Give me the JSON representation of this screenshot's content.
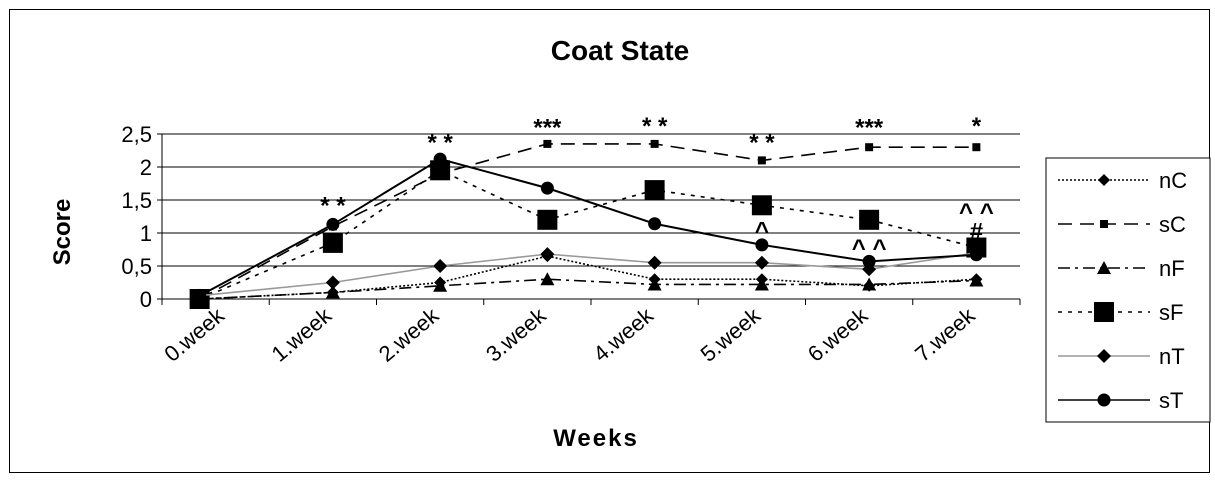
{
  "chart_data": {
    "type": "line",
    "title": "Coat State",
    "xlabel": "Weeks",
    "ylabel": "Score",
    "categories": [
      "0.week",
      "1.week",
      "2.week",
      "3.week",
      "4.week",
      "5.week",
      "6.week",
      "7.week"
    ],
    "y_ticks": [
      "0",
      "0,5",
      "1",
      "1,5",
      "2",
      "2,5"
    ],
    "ylim": [
      0,
      2.5
    ],
    "grid": "horizontal",
    "legend_position": "right",
    "series": [
      {
        "name": "nC",
        "values": [
          0.0,
          0.1,
          0.25,
          0.65,
          0.3,
          0.3,
          0.2,
          0.3
        ],
        "color": "#000000",
        "dash": "dotted-double",
        "marker": "diamond-small"
      },
      {
        "name": "sC",
        "values": [
          0.0,
          1.1,
          1.9,
          2.35,
          2.35,
          2.1,
          2.3,
          2.3
        ],
        "color": "#000000",
        "dash": "long-dash",
        "marker": "square-small"
      },
      {
        "name": "nF",
        "values": [
          0.0,
          0.1,
          0.2,
          0.3,
          0.22,
          0.22,
          0.22,
          0.28
        ],
        "color": "#000000",
        "dash": "dash-dot",
        "marker": "triangle"
      },
      {
        "name": "sF",
        "values": [
          0.0,
          0.85,
          1.95,
          1.2,
          1.65,
          1.42,
          1.2,
          0.78
        ],
        "color": "#000000",
        "dash": "dotted",
        "marker": "square-large"
      },
      {
        "name": "nT",
        "values": [
          0.05,
          0.25,
          0.5,
          0.68,
          0.55,
          0.55,
          0.45,
          0.7
        ],
        "color": "#999999",
        "dash": "solid",
        "marker": "diamond"
      },
      {
        "name": "sT",
        "values": [
          0.05,
          1.13,
          2.12,
          1.68,
          1.14,
          0.82,
          0.57,
          0.67
        ],
        "color": "#000000",
        "dash": "solid",
        "marker": "circle"
      }
    ],
    "annotations": [
      {
        "text": "* *",
        "week": 1,
        "y": 1.45
      },
      {
        "text": "* *",
        "week": 2,
        "y": 2.4
      },
      {
        "text": "***",
        "week": 3,
        "y": 2.63
      },
      {
        "text": "* *",
        "week": 4,
        "y": 2.65
      },
      {
        "text": "* *",
        "week": 5,
        "y": 2.4
      },
      {
        "text": "***",
        "week": 6,
        "y": 2.63
      },
      {
        "text": "*",
        "week": 7,
        "y": 2.65
      },
      {
        "text": "^",
        "week": 5,
        "y": 1.07
      },
      {
        "text": "^ ^",
        "week": 6,
        "y": 0.8
      },
      {
        "text": "^ ^",
        "week": 7,
        "y": 1.35
      },
      {
        "text": "#",
        "week": 7,
        "y": 1.05
      }
    ]
  }
}
